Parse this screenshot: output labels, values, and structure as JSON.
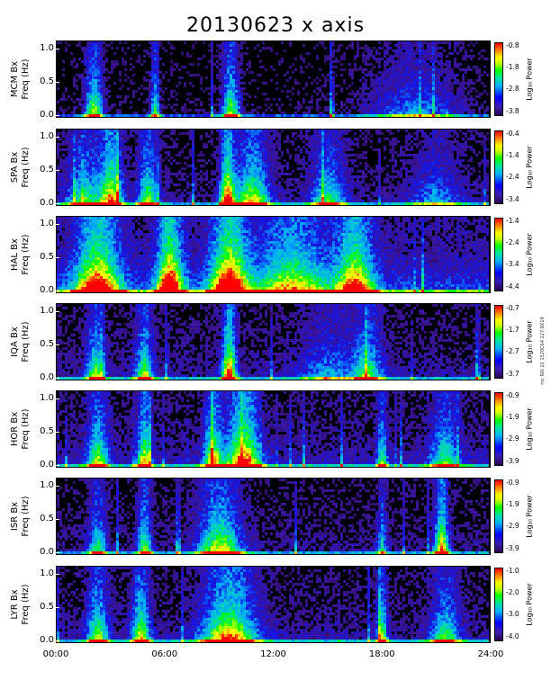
{
  "title": "20130623 x axis",
  "side_note": "mc RRI 22 1520C64 227.8X19",
  "x_ticks": [
    "00:00",
    "06:00",
    "12:00",
    "18:00",
    "24:00"
  ],
  "chart_data": [
    {
      "type": "heatmap",
      "station": "MCM",
      "ylabel_line1": "MCM Bx",
      "ylabel_line2": "Freq (Hz)",
      "y_ticks": [
        "1.0",
        "0.5",
        "0.0"
      ],
      "xlim": [
        0,
        24
      ],
      "ylim": [
        0,
        1.0
      ],
      "colorbar_label": "Log₁₀ Power",
      "colorbar_ticks": [
        "-0.8",
        "-1.8",
        "-2.8",
        "-3.8"
      ],
      "colorbar_range": [
        -3.8,
        -0.8
      ],
      "base_intensity": 0.05,
      "bursts": [
        [
          2.0,
          0.5,
          0.7,
          0.4
        ],
        [
          5.4,
          0.25,
          0.6,
          0.7
        ],
        [
          9.6,
          0.5,
          0.7,
          0.5
        ],
        [
          15.2,
          0.1,
          0.6,
          1.0
        ],
        [
          19.8,
          2.5,
          0.35,
          0.35
        ]
      ]
    },
    {
      "type": "heatmap",
      "station": "SPA",
      "ylabel_line1": "SPA Bx",
      "ylabel_line2": "Freq (Hz)",
      "y_ticks": [
        "1.0",
        "0.5",
        "0.0"
      ],
      "xlim": [
        0,
        24
      ],
      "ylim": [
        0,
        1.0
      ],
      "colorbar_label": "Log₁₀ Power",
      "colorbar_ticks": [
        "-0.4",
        "-1.4",
        "-2.4",
        "-3.4"
      ],
      "colorbar_range": [
        -3.4,
        -0.4
      ],
      "base_intensity": 0.12,
      "bursts": [
        [
          1.5,
          1.0,
          0.55,
          0.6
        ],
        [
          3.0,
          0.6,
          0.8,
          0.6
        ],
        [
          5.0,
          0.6,
          0.6,
          0.6
        ],
        [
          9.4,
          0.4,
          0.9,
          0.7
        ],
        [
          10.8,
          1.0,
          0.7,
          0.5
        ],
        [
          15.0,
          1.0,
          0.5,
          0.4
        ],
        [
          21.0,
          1.5,
          0.3,
          0.4
        ]
      ]
    },
    {
      "type": "heatmap",
      "station": "HAL",
      "ylabel_line1": "HAL Bx",
      "ylabel_line2": "Freq (Hz)",
      "y_ticks": [
        "1.0",
        "0.5",
        "0.0"
      ],
      "xlim": [
        0,
        24
      ],
      "ylim": [
        0,
        1.0
      ],
      "colorbar_label": "Log₁₀ Power",
      "colorbar_ticks": [
        "-1.4",
        "-2.4",
        "-3.4",
        "-4.4"
      ],
      "colorbar_range": [
        -4.4,
        -1.4
      ],
      "base_intensity": 0.3,
      "bursts": [
        [
          2.2,
          1.2,
          0.9,
          0.6
        ],
        [
          6.2,
          0.7,
          1.0,
          1.0
        ],
        [
          9.5,
          1.0,
          1.0,
          0.8
        ],
        [
          13.0,
          2.0,
          0.6,
          0.5
        ],
        [
          16.5,
          1.0,
          0.8,
          0.5
        ]
      ]
    },
    {
      "type": "heatmap",
      "station": "IQA",
      "ylabel_line1": "IQA Bx",
      "ylabel_line2": "Freq (Hz)",
      "y_ticks": [
        "1.0",
        "0.5",
        "0.0"
      ],
      "xlim": [
        0,
        24
      ],
      "ylim": [
        0,
        1.0
      ],
      "colorbar_label": "Log₁₀ Power",
      "colorbar_ticks": [
        "-0.7",
        "-1.7",
        "-2.7",
        "-3.7"
      ],
      "colorbar_range": [
        -3.7,
        -0.7
      ],
      "base_intensity": 0.15,
      "bursts": [
        [
          2.1,
          0.5,
          0.6,
          0.5
        ],
        [
          4.8,
          0.5,
          0.6,
          0.5
        ],
        [
          9.5,
          0.4,
          0.9,
          0.8
        ],
        [
          15.0,
          1.5,
          0.3,
          0.5
        ],
        [
          17.2,
          0.8,
          0.5,
          0.5
        ]
      ]
    },
    {
      "type": "heatmap",
      "station": "HOR",
      "ylabel_line1": "HOR Bx",
      "ylabel_line2": "Freq (Hz)",
      "y_ticks": [
        "1.0",
        "0.5",
        "0.0"
      ],
      "xlim": [
        0,
        24
      ],
      "ylim": [
        0,
        1.0
      ],
      "colorbar_label": "Log₁₀ Power",
      "colorbar_ticks": [
        "-0.9",
        "-1.9",
        "-2.9",
        "-3.9"
      ],
      "colorbar_range": [
        -3.9,
        -0.9
      ],
      "base_intensity": 0.18,
      "bursts": [
        [
          2.2,
          0.6,
          0.6,
          0.5
        ],
        [
          4.8,
          0.4,
          0.7,
          0.5
        ],
        [
          8.6,
          0.5,
          0.7,
          0.6
        ],
        [
          10.3,
          0.9,
          0.9,
          0.7
        ],
        [
          18.0,
          0.3,
          0.5,
          0.5
        ],
        [
          21.5,
          0.8,
          0.5,
          0.4
        ]
      ]
    },
    {
      "type": "heatmap",
      "station": "ISR",
      "ylabel_line1": "ISR Bx",
      "ylabel_line2": "Freq (Hz)",
      "y_ticks": [
        "1.0",
        "0.5",
        "0.0"
      ],
      "xlim": [
        0,
        24
      ],
      "ylim": [
        0,
        1.0
      ],
      "colorbar_label": "Log₁₀ Power",
      "colorbar_ticks": [
        "-0.9",
        "-1.9",
        "-2.9",
        "-3.9"
      ],
      "colorbar_range": [
        -3.9,
        -0.9
      ],
      "base_intensity": 0.12,
      "bursts": [
        [
          2.2,
          0.5,
          0.5,
          0.5
        ],
        [
          4.8,
          0.4,
          0.6,
          0.5
        ],
        [
          9.0,
          1.2,
          0.7,
          0.5
        ],
        [
          18.0,
          0.3,
          0.4,
          0.4
        ],
        [
          21.3,
          0.4,
          0.8,
          0.5
        ]
      ]
    },
    {
      "type": "heatmap",
      "station": "LYR",
      "ylabel_line1": "LYR Bx",
      "ylabel_line2": "Freq (Hz)",
      "y_ticks": [
        "1.0",
        "0.5",
        "0.0"
      ],
      "xlim": [
        0,
        24
      ],
      "ylim": [
        0,
        1.0
      ],
      "colorbar_label": "Log₁₀ Power",
      "colorbar_ticks": [
        "-1.0",
        "-2.0",
        "-3.0",
        "-4.0"
      ],
      "colorbar_range": [
        -4.0,
        -1.0
      ],
      "base_intensity": 0.15,
      "bursts": [
        [
          2.2,
          0.6,
          0.6,
          0.5
        ],
        [
          4.6,
          0.5,
          0.7,
          0.5
        ],
        [
          9.5,
          1.5,
          0.8,
          0.6
        ],
        [
          18.0,
          0.3,
          0.6,
          0.5
        ],
        [
          21.5,
          0.8,
          0.5,
          0.4
        ]
      ]
    }
  ]
}
